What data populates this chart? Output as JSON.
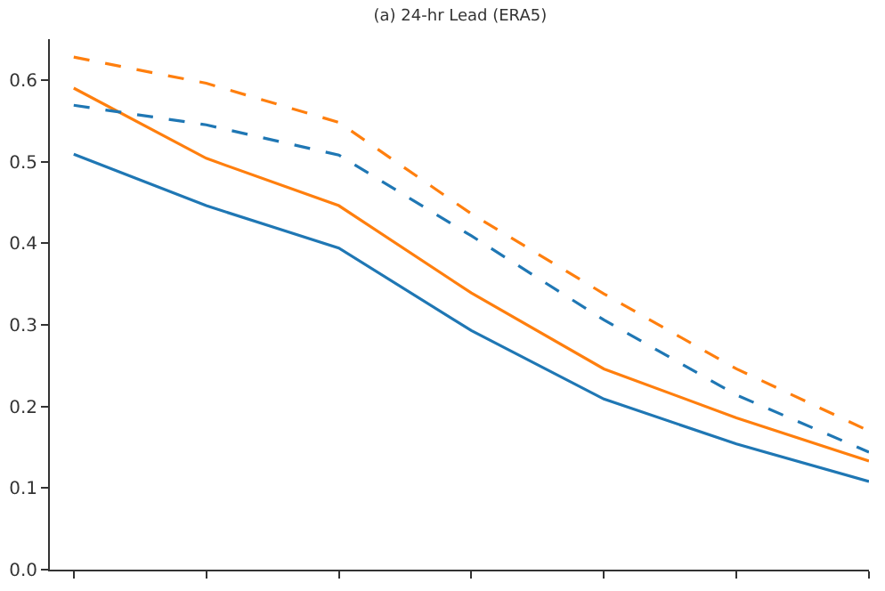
{
  "chart_data": {
    "type": "line",
    "title": "(a) 24-hr Lead (ERA5)",
    "categories": [
      null,
      null,
      null,
      null,
      null,
      null,
      null
    ],
    "series": [
      {
        "color": "#1f77b4",
        "line_style": "solid",
        "values": [
          0.509,
          0.446,
          0.394,
          0.293,
          0.209,
          0.154,
          0.108
        ]
      },
      {
        "color": "#ff7f0e",
        "line_style": "solid",
        "values": [
          0.59,
          0.504,
          0.446,
          0.339,
          0.246,
          0.186,
          0.133
        ]
      },
      {
        "color": "#1f77b4",
        "line_style": "dashed",
        "values": [
          0.569,
          0.545,
          0.508,
          0.409,
          0.306,
          0.214,
          0.144
        ]
      },
      {
        "color": "#ff7f0e",
        "line_style": "dashed",
        "values": [
          0.628,
          0.596,
          0.548,
          0.436,
          0.338,
          0.246,
          0.17
        ]
      }
    ],
    "ylim": [
      0,
      0.65
    ],
    "yticks": [
      {
        "value": 0,
        "label": "0.0"
      },
      {
        "value": 0.1,
        "label": "0.1"
      },
      {
        "value": 0.2,
        "label": "0.2"
      },
      {
        "value": 0.3,
        "label": "0.3"
      },
      {
        "value": 0.4,
        "label": "0.4"
      },
      {
        "value": 0.5,
        "label": "0.5"
      },
      {
        "value": 0.6,
        "label": "0.6"
      }
    ],
    "tick_labels": "y"
  }
}
